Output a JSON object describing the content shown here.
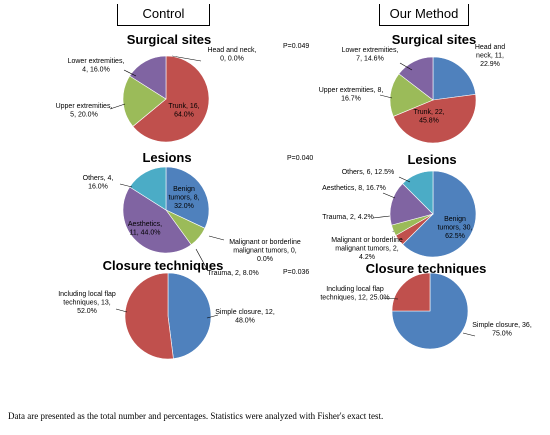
{
  "headers": {
    "left": "Control",
    "right": "Our Method"
  },
  "footer": "Data are presented as the total number and percentages. Statistics were analyzed with Fisher's exact test.",
  "colors": {
    "blue": "#4f81bd",
    "red": "#c0504d",
    "green": "#9bbb59",
    "purple": "#8064a2",
    "teal": "#4bacc6"
  },
  "chart_data": [
    {
      "type": "pie",
      "panel": "control",
      "title": "Surgical sites",
      "p_value": "P=0.049",
      "slices": [
        {
          "label": "Head and neck, 0, 0.0%",
          "value": 0,
          "color": "#4f81bd"
        },
        {
          "label": "Trunk, 16, 64.0%",
          "value": 16,
          "color": "#c0504d"
        },
        {
          "label": "Upper extremities, 5, 20.0%",
          "value": 5,
          "color": "#9bbb59"
        },
        {
          "label": "Lower extremities, 4, 16.0%",
          "value": 4,
          "color": "#8064a2"
        }
      ]
    },
    {
      "type": "pie",
      "panel": "method",
      "title": "Surgical sites",
      "slices": [
        {
          "label": "Head and neck, 11, 22.9%",
          "value": 11,
          "color": "#4f81bd"
        },
        {
          "label": "Trunk, 22, 45.8%",
          "value": 22,
          "color": "#c0504d"
        },
        {
          "label": "Upper extremities, 8, 16.7%",
          "value": 8,
          "color": "#9bbb59"
        },
        {
          "label": "Lower extremities, 7, 14.6%",
          "value": 7,
          "color": "#8064a2"
        }
      ]
    },
    {
      "type": "pie",
      "panel": "control",
      "title": "Lesions",
      "p_value": "P=0.040",
      "slices": [
        {
          "label": "Benign tumors, 8, 32.0%",
          "value": 8,
          "color": "#4f81bd"
        },
        {
          "label": "Malignant or borderline malignant tumors, 0, 0.0%",
          "value": 0,
          "color": "#c0504d"
        },
        {
          "label": "Trauma, 2, 8.0%",
          "value": 2,
          "color": "#9bbb59"
        },
        {
          "label": "Aesthetics, 11, 44.0%",
          "value": 11,
          "color": "#8064a2"
        },
        {
          "label": "Others, 4, 16.0%",
          "value": 4,
          "color": "#4bacc6"
        }
      ]
    },
    {
      "type": "pie",
      "panel": "method",
      "title": "Lesions",
      "slices": [
        {
          "label": "Benign tumors, 30, 62.5%",
          "value": 30,
          "color": "#4f81bd"
        },
        {
          "label": "Malignant or borderline malignant tumors, 2, 4.2%",
          "value": 2,
          "color": "#c0504d"
        },
        {
          "label": "Trauma, 2, 4.2%",
          "value": 2,
          "color": "#9bbb59"
        },
        {
          "label": "Aesthetics, 8, 16.7%",
          "value": 8,
          "color": "#8064a2"
        },
        {
          "label": "Others, 6, 12.5%",
          "value": 6,
          "color": "#4bacc6"
        }
      ]
    },
    {
      "type": "pie",
      "panel": "control",
      "title": "Closure techniques",
      "p_value": "P=0.036",
      "slices": [
        {
          "label": "Simple closure, 12, 48.0%",
          "value": 12,
          "color": "#4f81bd"
        },
        {
          "label": "Including local flap techniques, 13, 52.0%",
          "value": 13,
          "color": "#c0504d"
        }
      ]
    },
    {
      "type": "pie",
      "panel": "method",
      "title": "Closure techniques",
      "slices": [
        {
          "label": "Simple closure, 36, 75.0%",
          "value": 36,
          "color": "#4f81bd"
        },
        {
          "label": "Including local flap techniques, 12, 25.0%",
          "value": 12,
          "color": "#c0504d"
        }
      ]
    }
  ]
}
